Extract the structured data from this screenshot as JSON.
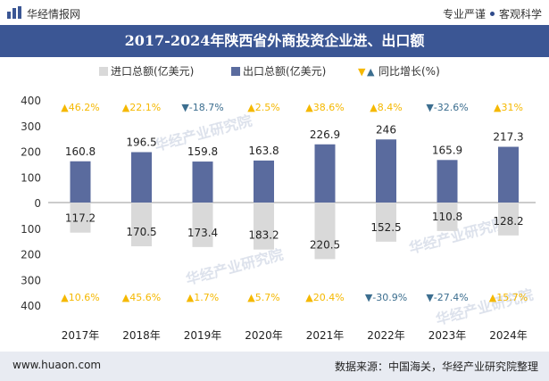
{
  "header": {
    "brand": "华经情报网",
    "slogan_left": "专业严谨",
    "slogan_right": "客观科学"
  },
  "title": "2017-2024年陕西省外商投资企业进、出口额",
  "footer": {
    "url": "www.huaon.com",
    "source": "数据来源：中国海关，华经产业研究院整理"
  },
  "watermark": "华经产业研究院",
  "chart_data": {
    "type": "bar",
    "categories": [
      "2017年",
      "2018年",
      "2019年",
      "2020年",
      "2021年",
      "2022年",
      "2023年",
      "2024年"
    ],
    "series": [
      {
        "name": "进口总额(亿美元)",
        "values": [
          117.2,
          170.5,
          173.4,
          183.2,
          220.5,
          152.5,
          110.8,
          128.2
        ],
        "color": "#d9d9d9"
      },
      {
        "name": "出口总额(亿美元)",
        "values": [
          160.8,
          196.5,
          159.8,
          163.8,
          226.9,
          246,
          165.9,
          217.3
        ],
        "color": "#5a6b9e"
      }
    ],
    "growth": [
      {
        "name": "同比增长(%)",
        "export": [
          "46.2%",
          "22.1%",
          "-18.7%",
          "2.5%",
          "38.6%",
          "8.4%",
          "-32.6%",
          "31%"
        ],
        "import": [
          "10.6%",
          "45.6%",
          "1.7%",
          "5.7%",
          "20.4%",
          "-30.9%",
          "-27.4%",
          "15.7%"
        ]
      }
    ],
    "y_ticks": [
      "400",
      "300",
      "200",
      "100",
      "0",
      "100",
      "200",
      "300",
      "400"
    ],
    "ylim": [
      -400,
      400
    ],
    "colors": {
      "up": "#f5b800",
      "down": "#3c6e8f",
      "axis": "#999999"
    },
    "legend_position": "top-center"
  }
}
